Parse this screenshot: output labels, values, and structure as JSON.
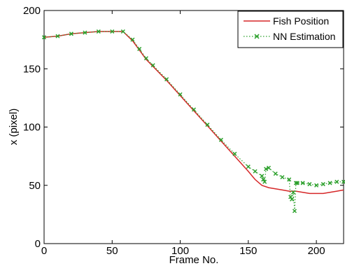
{
  "chart_data": {
    "type": "line",
    "title": "",
    "xlabel": "Frame No.",
    "ylabel": "x (pixel)",
    "xlim": [
      0,
      220
    ],
    "ylim": [
      0,
      200
    ],
    "xticks": [
      0,
      50,
      100,
      150,
      200
    ],
    "yticks": [
      0,
      50,
      100,
      150,
      200
    ],
    "xtick_labels": [
      "0",
      "50",
      "100",
      "150",
      "200"
    ],
    "ytick_labels": [
      "0",
      "50",
      "100",
      "150",
      "200"
    ],
    "grid": false,
    "legend_position": "top-right",
    "series": [
      {
        "name": "Fish Position",
        "color": "#d62728",
        "style": "solid",
        "x": [
          0,
          10,
          20,
          30,
          40,
          50,
          58,
          65,
          70,
          75,
          80,
          90,
          100,
          110,
          120,
          130,
          140,
          150,
          155,
          160,
          165,
          170,
          175,
          180,
          185,
          190,
          195,
          200,
          205,
          210,
          215,
          220
        ],
        "y": [
          177,
          178,
          180,
          181,
          182,
          182,
          182,
          174,
          166,
          158,
          152,
          140,
          127,
          114,
          101,
          88,
          75,
          62,
          55,
          50,
          48,
          47,
          46,
          45,
          45,
          44,
          43,
          43,
          43,
          44,
          45,
          46
        ]
      },
      {
        "name": "NN Estimation",
        "color": "#2ca02c",
        "style": "dotted-markers",
        "x": [
          0,
          10,
          20,
          30,
          40,
          50,
          58,
          65,
          70,
          75,
          80,
          90,
          100,
          110,
          120,
          130,
          140,
          150,
          155,
          160,
          161,
          162,
          163,
          165,
          170,
          175,
          180,
          181,
          182,
          183,
          184,
          185,
          186,
          190,
          195,
          200,
          205,
          210,
          215,
          220
        ],
        "y": [
          177,
          178,
          180,
          181,
          182,
          182,
          182,
          175,
          167,
          159,
          153,
          141,
          128,
          115,
          102,
          89,
          77,
          66,
          62,
          58,
          55,
          53,
          64,
          65,
          60,
          57,
          55,
          40,
          38,
          44,
          28,
          52,
          52,
          52,
          51,
          50,
          51,
          52,
          53,
          53
        ]
      }
    ]
  }
}
